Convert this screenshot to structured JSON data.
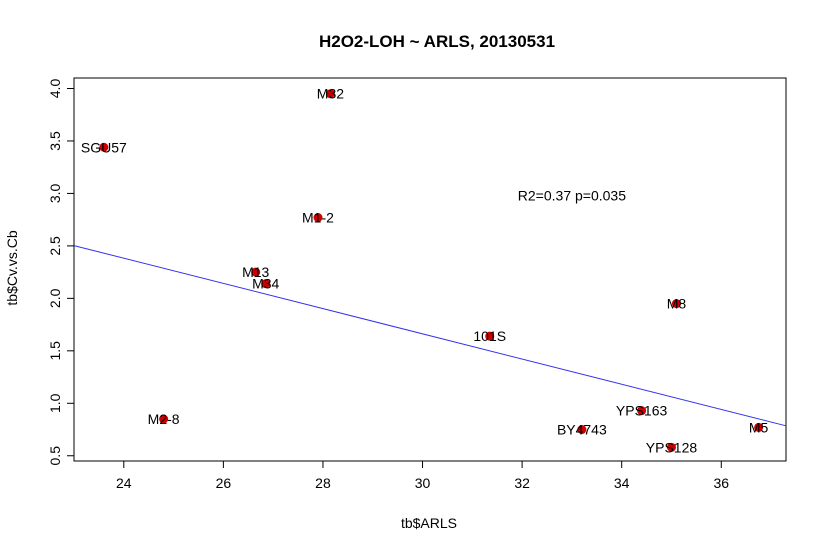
{
  "chart_data": {
    "type": "scatter",
    "title": "H2O2-LOH ~ ARLS, 20130531",
    "xlabel": "tb$ARLS",
    "ylabel": "tb$Cv.vs.Cb",
    "xlim": [
      23.0,
      37.3
    ],
    "ylim": [
      0.45,
      4.1
    ],
    "xticks": [
      24,
      26,
      28,
      30,
      32,
      34,
      36
    ],
    "yticks": [
      0.5,
      1.0,
      1.5,
      2.0,
      2.5,
      3.0,
      3.5,
      4.0
    ],
    "xtick_labels": [
      "24",
      "26",
      "28",
      "30",
      "32",
      "34",
      "36"
    ],
    "ytick_labels": [
      "0.5",
      "1.0",
      "1.5",
      "2.0",
      "2.5",
      "3.0",
      "3.5",
      "4.0"
    ],
    "grid": false,
    "point_color": "#cc0000",
    "line_color": "#3333ee",
    "points": [
      {
        "label": "SGU57",
        "x": 23.6,
        "y": 3.44
      },
      {
        "label": "M32",
        "x": 28.15,
        "y": 3.95
      },
      {
        "label": "M1-2",
        "x": 27.9,
        "y": 2.77
      },
      {
        "label": "M13",
        "x": 26.65,
        "y": 2.25
      },
      {
        "label": "M34",
        "x": 26.85,
        "y": 2.14
      },
      {
        "label": "101S",
        "x": 31.35,
        "y": 1.64
      },
      {
        "label": "M8",
        "x": 35.1,
        "y": 1.95
      },
      {
        "label": "M2-8",
        "x": 24.8,
        "y": 0.85
      },
      {
        "label": "BY4743",
        "x": 33.2,
        "y": 0.75
      },
      {
        "label": "YPS163",
        "x": 34.4,
        "y": 0.93
      },
      {
        "label": "YPS128",
        "x": 35.0,
        "y": 0.58
      },
      {
        "label": "M5",
        "x": 36.75,
        "y": 0.77
      }
    ],
    "regression": {
      "intercept": 5.265,
      "slope": -0.1201
    },
    "annotation": {
      "text": "R2=0.37 p=0.035",
      "x": 33.0,
      "y": 2.98
    }
  }
}
